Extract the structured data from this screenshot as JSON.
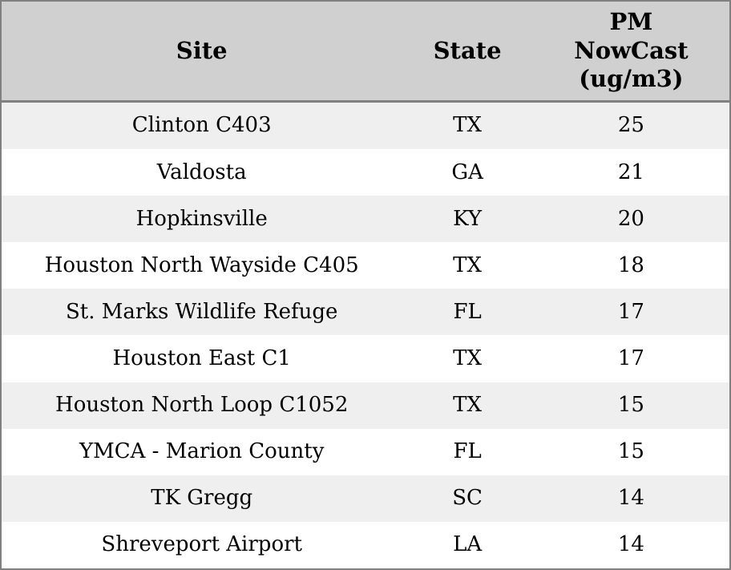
{
  "chart_data": {
    "type": "table",
    "title": "",
    "columns": [
      {
        "id": "site",
        "label": "Site"
      },
      {
        "id": "state",
        "label": "State"
      },
      {
        "id": "pm_nowcast",
        "label": "PM\nNowCast\n(ug/m3)"
      }
    ],
    "column_full_labels": [
      "Site",
      "State",
      "PM NowCast (ug/m3)"
    ],
    "rows": [
      {
        "site": "Clinton C403",
        "state": "TX",
        "pm_nowcast": "25"
      },
      {
        "site": "Valdosta",
        "state": "GA",
        "pm_nowcast": "21"
      },
      {
        "site": "Hopkinsville",
        "state": "KY",
        "pm_nowcast": "20"
      },
      {
        "site": "Houston North Wayside C405",
        "state": "TX",
        "pm_nowcast": "18"
      },
      {
        "site": "St. Marks Wildlife Refuge",
        "state": "FL",
        "pm_nowcast": "17"
      },
      {
        "site": "Houston East C1",
        "state": "TX",
        "pm_nowcast": "17"
      },
      {
        "site": "Houston North Loop C1052",
        "state": "TX",
        "pm_nowcast": "15"
      },
      {
        "site": "YMCA - Marion County",
        "state": "FL",
        "pm_nowcast": "15"
      },
      {
        "site": "TK Gregg",
        "state": "SC",
        "pm_nowcast": "14"
      },
      {
        "site": "Shreveport Airport",
        "state": "LA",
        "pm_nowcast": "14"
      }
    ]
  },
  "colors": {
    "header_bg": "#d0d0d0",
    "row_alt_bg": "#efefef",
    "row_bg": "#ffffff",
    "border": "#808080",
    "text": "#000000"
  }
}
